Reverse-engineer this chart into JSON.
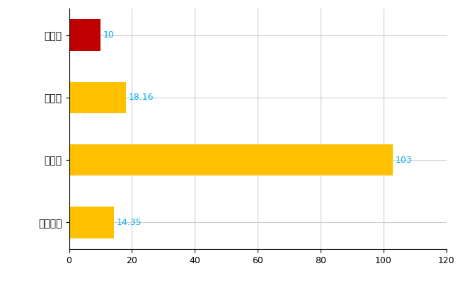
{
  "categories": [
    "全国平均",
    "県最大",
    "県平均",
    "志賀町"
  ],
  "values": [
    14.35,
    103,
    18.16,
    10
  ],
  "bar_colors": [
    "#FFC000",
    "#FFC000",
    "#FFC000",
    "#C00000"
  ],
  "value_labels": [
    "14.35",
    "103",
    "18.16",
    "10"
  ],
  "label_color": "#00B0F0",
  "xlim": [
    0,
    120
  ],
  "xticks": [
    0,
    20,
    40,
    60,
    80,
    100,
    120
  ],
  "grid_color": "#CCCCCC",
  "background_color": "#FFFFFF",
  "bar_height": 0.5,
  "label_fontsize": 9,
  "tick_fontsize": 9,
  "ylabel_fontsize": 10
}
